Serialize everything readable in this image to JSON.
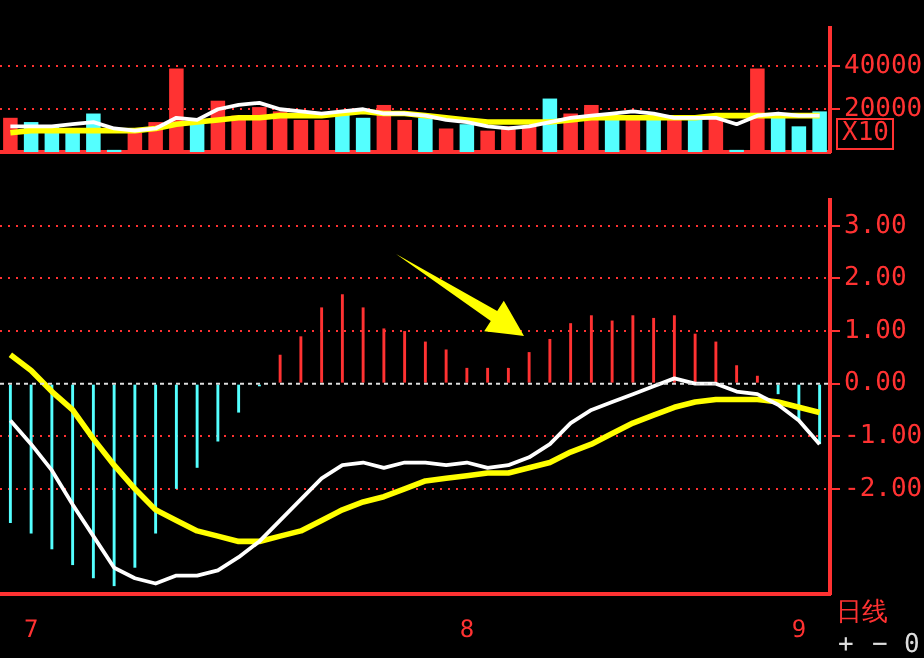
{
  "chart_data": [
    {
      "type": "bar",
      "categories": [
        null,
        null,
        null,
        null,
        null,
        null,
        null,
        null,
        null,
        null,
        null,
        null,
        null,
        null,
        null,
        null,
        null,
        null,
        null,
        null,
        null,
        null,
        null,
        null,
        null,
        null,
        null,
        null,
        null,
        null,
        null,
        null,
        null,
        null,
        null,
        null,
        null,
        null,
        null,
        null
      ],
      "series": [
        {
          "colors": [
            "#ff3232",
            "#54ffff",
            "#54ffff",
            "#54ffff",
            "#54ffff",
            "#54ffff",
            "#ff3232",
            "#ff3232",
            "#ff3232",
            "#54ffff",
            "#ff3232",
            "#ff3232",
            "#ff3232",
            "#ff3232",
            "#ff3232",
            "#ff3232",
            "#54ffff",
            "#54ffff",
            "#ff3232",
            "#ff3232",
            "#54ffff",
            "#ff3232",
            "#54ffff",
            "#ff3232",
            "#ff3232",
            "#ff3232",
            "#54ffff",
            "#ff3232",
            "#ff3232",
            "#54ffff",
            "#ff3232",
            "#54ffff",
            "#ff3232",
            "#54ffff",
            "#ff3232",
            "#54ffff",
            "#ff3232",
            "#54ffff",
            "#54ffff",
            "#54ffff"
          ],
          "values": [
            16000,
            14000,
            12000,
            11000,
            18000,
            1000,
            9000,
            14000,
            39000,
            14000,
            24000,
            17000,
            21000,
            19000,
            15000,
            15000,
            18000,
            16000,
            22000,
            15000,
            16000,
            11000,
            13000,
            10000,
            12000,
            12000,
            25000,
            18000,
            22000,
            17000,
            15000,
            15000,
            16000,
            15000,
            17000,
            1000,
            39000,
            17000,
            12000,
            19000
          ]
        },
        {
          "type": "line",
          "color": "#ffffff",
          "values": [
            12000,
            12000,
            12000,
            13000,
            14000,
            11000,
            10000,
            11000,
            16000,
            15000,
            20000,
            22000,
            23000,
            20000,
            19000,
            18000,
            19000,
            20000,
            18000,
            18000,
            17000,
            15000,
            14000,
            12000,
            11000,
            12000,
            14000,
            16000,
            17000,
            18000,
            19000,
            18000,
            16000,
            16000,
            16000,
            13000,
            17000,
            18000,
            17000,
            17000
          ]
        },
        {
          "type": "line",
          "color": "#ffff00",
          "values": [
            9000,
            10000,
            10000,
            10000,
            10000,
            10000,
            10000,
            11000,
            13000,
            14000,
            15000,
            16000,
            16000,
            17000,
            17000,
            17000,
            18000,
            19000,
            18000,
            18000,
            17000,
            16000,
            15000,
            14000,
            14000,
            14000,
            14000,
            15000,
            16000,
            16000,
            16000,
            16000,
            16000,
            16000,
            17000,
            17000,
            17000,
            17000,
            17000,
            17000
          ]
        }
      ],
      "ylim": [
        0,
        58000
      ],
      "yticks": [
        20000,
        40000
      ],
      "grid": "y",
      "legend": false,
      "tick_labels": "y",
      "marker": "none",
      "annotations": [
        "X10"
      ]
    },
    {
      "type": "bar",
      "categories": [
        null,
        "7",
        null,
        null,
        null,
        null,
        null,
        null,
        null,
        null,
        null,
        null,
        null,
        null,
        null,
        null,
        null,
        null,
        null,
        null,
        null,
        null,
        "8",
        null,
        null,
        null,
        null,
        null,
        null,
        null,
        null,
        null,
        null,
        null,
        null,
        null,
        null,
        null,
        "9",
        null
      ],
      "series": [
        {
          "colors": [
            "#54ffff",
            "#54ffff",
            "#54ffff",
            "#54ffff",
            "#54ffff",
            "#54ffff",
            "#54ffff",
            "#54ffff",
            "#54ffff",
            "#54ffff",
            "#54ffff",
            "#54ffff",
            "#54ffff",
            "#ff3232",
            "#ff3232",
            "#ff3232",
            "#ff3232",
            "#ff3232",
            "#ff3232",
            "#ff3232",
            "#ff3232",
            "#ff3232",
            "#ff3232",
            "#ff3232",
            "#ff3232",
            "#ff3232",
            "#ff3232",
            "#ff3232",
            "#ff3232",
            "#ff3232",
            "#ff3232",
            "#ff3232",
            "#ff3232",
            "#ff3232",
            "#ff3232",
            "#ff3232",
            "#ff3232",
            "#54ffff",
            "#54ffff",
            "#54ffff"
          ],
          "values": [
            -2.65,
            -2.85,
            -3.15,
            -3.45,
            -3.7,
            -3.85,
            -3.5,
            -2.85,
            -2,
            -1.6,
            -1.1,
            -0.55,
            -0.05,
            0.55,
            0.9,
            1.45,
            1.7,
            1.45,
            1.05,
            1,
            0.8,
            0.65,
            0.3,
            0.3,
            0.3,
            0.6,
            0.85,
            1.15,
            1.3,
            1.2,
            1.3,
            1.25,
            1.3,
            0.95,
            0.8,
            0.35,
            0.15,
            -0.2,
            -0.7,
            -1.15
          ]
        },
        {
          "type": "line",
          "color": "#ffffff",
          "values": [
            -0.7,
            -1.15,
            -1.65,
            -2.3,
            -2.9,
            -3.5,
            -3.7,
            -3.8,
            -3.65,
            -3.65,
            -3.55,
            -3.3,
            -3,
            -2.6,
            -2.2,
            -1.8,
            -1.55,
            -1.5,
            -1.6,
            -1.5,
            -1.5,
            -1.55,
            -1.5,
            -1.6,
            -1.55,
            -1.4,
            -1.15,
            -0.75,
            -0.5,
            -0.35,
            -0.2,
            -0.05,
            0.1,
            0,
            0,
            -0.15,
            -0.2,
            -0.4,
            -0.7,
            -1.15
          ]
        },
        {
          "type": "line",
          "color": "#ffff00",
          "values": [
            0.55,
            0.25,
            -0.15,
            -0.5,
            -1.05,
            -1.55,
            -2,
            -2.4,
            -2.6,
            -2.8,
            -2.9,
            -3,
            -3,
            -2.9,
            -2.8,
            -2.6,
            -2.4,
            -2.25,
            -2.15,
            -2,
            -1.85,
            -1.8,
            -1.75,
            -1.7,
            -1.7,
            -1.6,
            -1.5,
            -1.3,
            -1.15,
            -0.95,
            -0.75,
            -0.6,
            -0.45,
            -0.35,
            -0.3,
            -0.3,
            -0.3,
            -0.35,
            -0.45,
            -0.55
          ]
        }
      ],
      "ylim": [
        -4,
        3.5
      ],
      "yticks": [
        {
          "value": 3,
          "label": "3.00"
        },
        {
          "value": 2,
          "label": "2.00"
        },
        {
          "value": 1,
          "label": "1.00"
        },
        {
          "value": 0,
          "label": "0.00"
        },
        {
          "value": -1,
          "label": "-1.00"
        },
        {
          "value": -2,
          "label": "-2.00"
        }
      ],
      "ref_lines": [
        {
          "axis": "y",
          "value": 0,
          "color": "#dddddd",
          "line_style": "dotted"
        }
      ],
      "grid": "y",
      "legend": false,
      "marker": "none",
      "annotations": [
        "日线",
        "+",
        "−",
        "0"
      ]
    }
  ]
}
